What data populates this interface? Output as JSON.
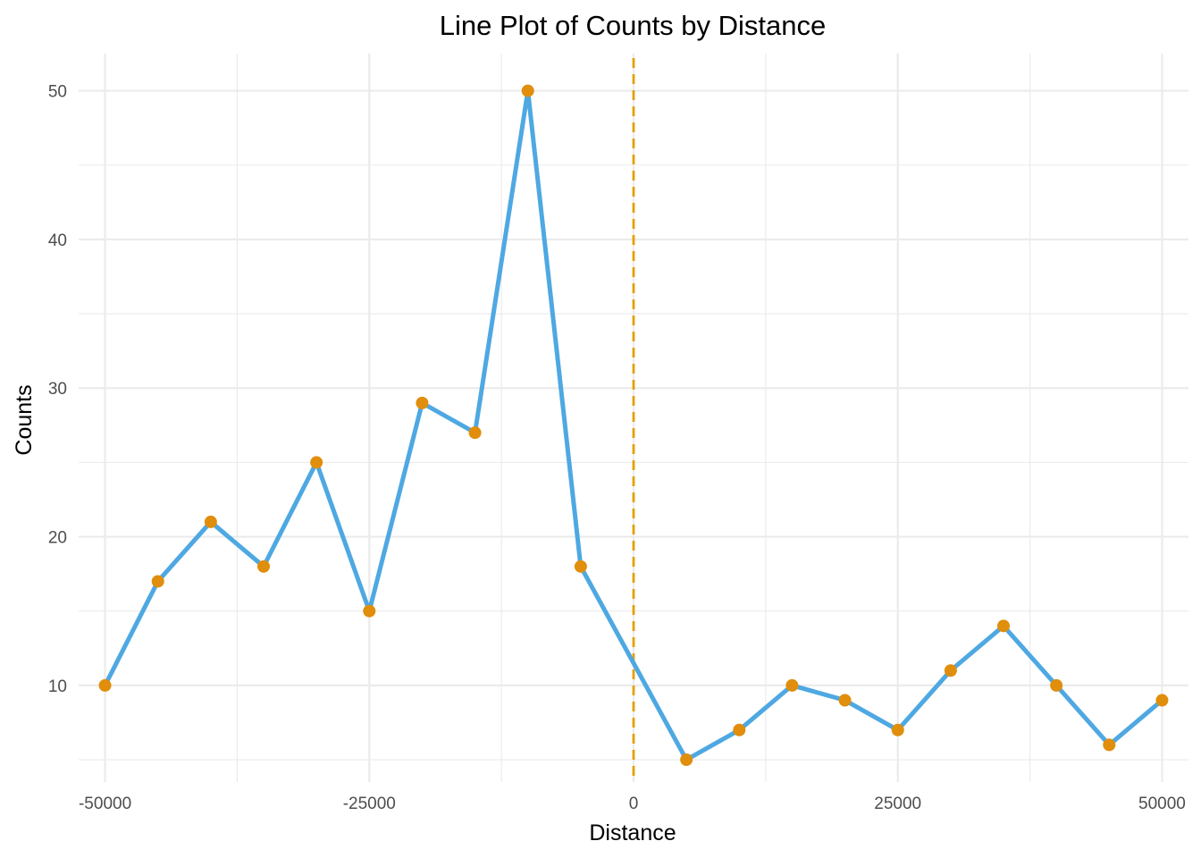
{
  "chart_data": {
    "type": "line",
    "title": "Line Plot of Counts by Distance",
    "xlabel": "Distance",
    "ylabel": "Counts",
    "xlim": [
      -52500,
      52500
    ],
    "ylim": [
      3.5,
      52.5
    ],
    "x_ticks": [
      -50000,
      -25000,
      0,
      25000,
      50000
    ],
    "x_tick_labels": [
      "-50000",
      "-25000",
      "0",
      "25000",
      "50000"
    ],
    "y_ticks": [
      10,
      20,
      30,
      40,
      50
    ],
    "y_tick_labels": [
      "10",
      "20",
      "30",
      "40",
      "50"
    ],
    "grid": true,
    "reference_line": {
      "x": 0,
      "style": "dashed",
      "color": "#E69F00"
    },
    "series": [
      {
        "line_color": "#4EA8E2",
        "point_color": "#E08E0B",
        "x": [
          -50000,
          -45000,
          -40000,
          -35000,
          -30000,
          -25000,
          -20000,
          -15000,
          -10000,
          -5000,
          5000,
          10000,
          15000,
          20000,
          25000,
          30000,
          35000,
          40000,
          45000,
          50000
        ],
        "y": [
          10,
          17,
          21,
          18,
          25,
          15,
          29,
          27,
          50,
          18,
          5,
          7,
          10,
          9,
          7,
          11,
          14,
          10,
          6,
          9
        ]
      }
    ]
  }
}
